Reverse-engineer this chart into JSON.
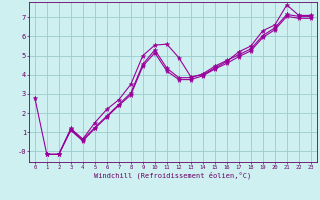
{
  "title": "",
  "xlabel": "Windchill (Refroidissement éolien,°C)",
  "bg_color": "#cff0f0",
  "line_color": "#990099",
  "grid_color": "#99cccc",
  "xlim": [
    -0.5,
    23.5
  ],
  "ylim": [
    -0.55,
    7.8
  ],
  "yticks": [
    0,
    1,
    2,
    3,
    4,
    5,
    6,
    7
  ],
  "ytick_labels": [
    "-0",
    "1",
    "2",
    "3",
    "4",
    "5",
    "6",
    "7"
  ],
  "xticks": [
    0,
    1,
    2,
    3,
    4,
    5,
    6,
    7,
    8,
    9,
    10,
    11,
    12,
    13,
    14,
    15,
    16,
    17,
    18,
    19,
    20,
    21,
    22,
    23
  ],
  "series": [
    {
      "x": [
        0,
        1,
        2,
        3,
        4,
        5,
        6,
        7,
        8,
        9,
        10,
        11,
        12,
        13,
        14,
        15,
        16,
        17,
        18,
        19,
        20,
        21,
        22,
        23
      ],
      "y": [
        2.8,
        -0.15,
        -0.15,
        1.2,
        0.65,
        1.5,
        2.2,
        2.7,
        3.5,
        5.0,
        5.55,
        5.6,
        4.9,
        3.9,
        4.0,
        4.35,
        4.7,
        5.2,
        5.5,
        6.3,
        6.6,
        7.65,
        7.1,
        7.1
      ]
    },
    {
      "x": [
        1,
        2,
        3,
        4,
        5,
        6,
        7,
        8,
        9,
        10,
        11,
        12,
        13,
        14,
        15,
        16,
        17,
        18,
        19,
        20,
        21,
        22,
        23
      ],
      "y": [
        -0.15,
        -0.15,
        1.15,
        0.6,
        1.25,
        1.85,
        2.45,
        3.05,
        4.55,
        5.3,
        4.35,
        3.85,
        3.85,
        4.05,
        4.45,
        4.75,
        5.05,
        5.35,
        6.05,
        6.45,
        7.15,
        7.05,
        7.05
      ]
    },
    {
      "x": [
        1,
        2,
        3,
        4,
        5,
        6,
        7,
        8,
        9,
        10,
        11,
        12,
        13,
        14,
        15,
        16,
        17,
        18,
        19,
        20,
        21,
        22,
        23
      ],
      "y": [
        -0.15,
        -0.15,
        1.1,
        0.55,
        1.2,
        1.8,
        2.4,
        2.95,
        4.45,
        5.15,
        4.2,
        3.75,
        3.75,
        3.95,
        4.3,
        4.6,
        4.95,
        5.25,
        5.95,
        6.35,
        7.05,
        6.95,
        6.95
      ]
    }
  ]
}
